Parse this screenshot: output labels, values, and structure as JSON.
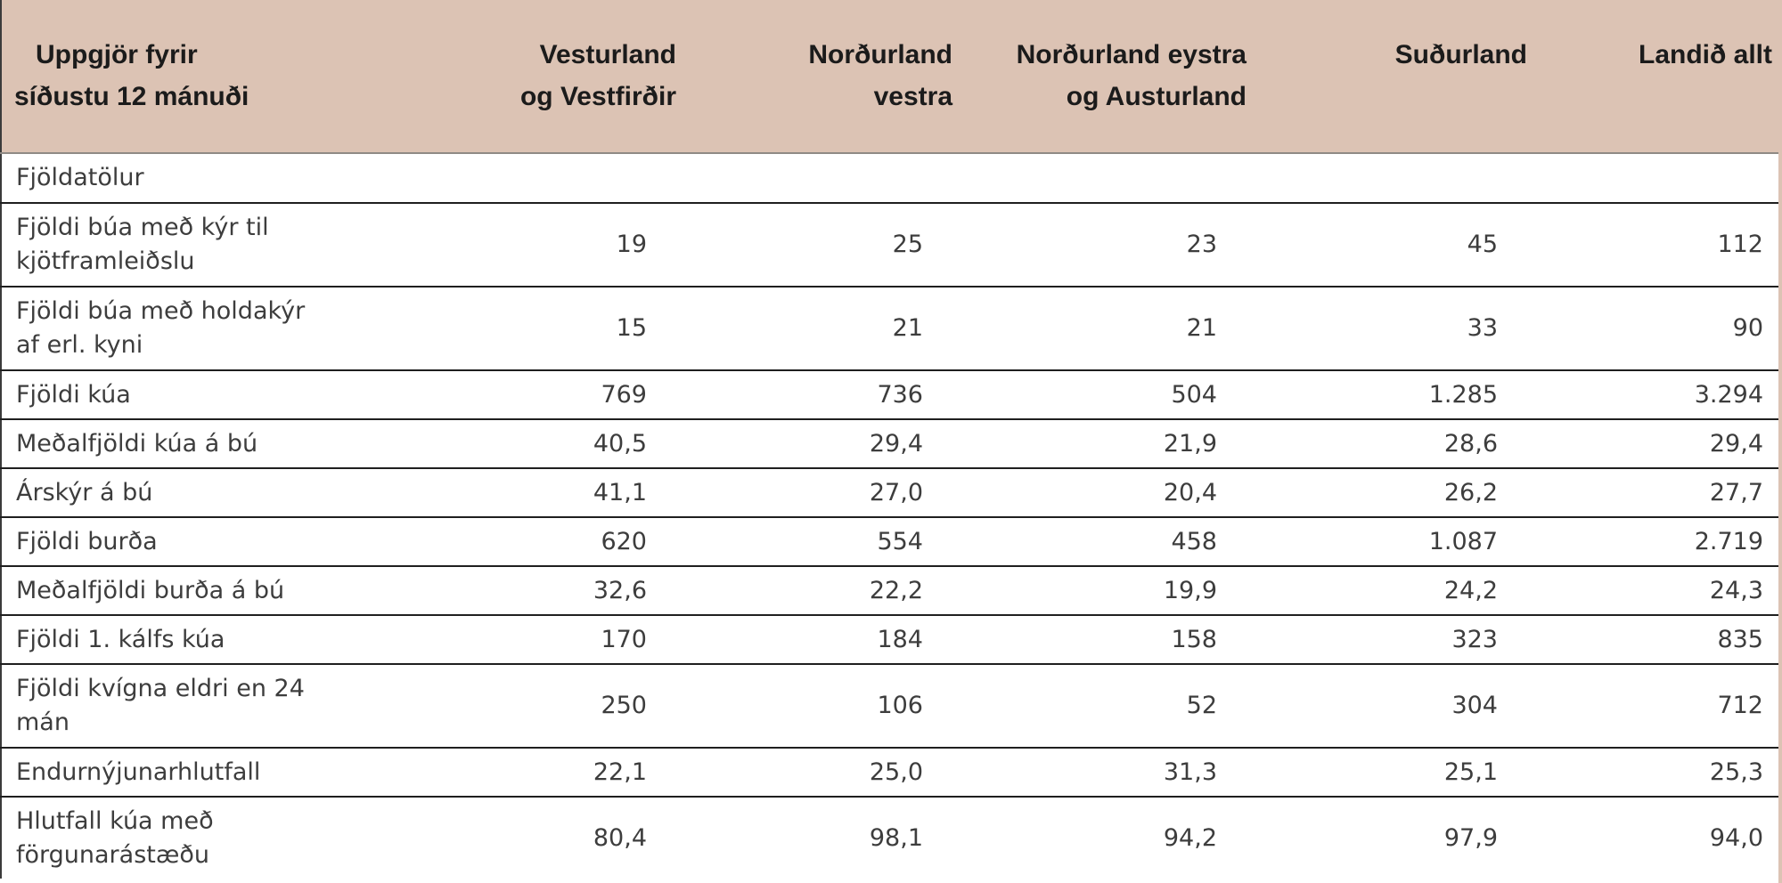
{
  "colors": {
    "header_bg": "#dcc3b4",
    "row_border": "#1f1f1f",
    "header_border": "#8f8a85",
    "body_text": "#3d3d3d",
    "header_text": "#1b1b1b"
  },
  "table": {
    "header": {
      "row_label": "Uppgjör fyrir\nsíðustu 12 mánuði",
      "columns": [
        "Vesturland\nog Vestfirðir",
        "Norðurland\nvestra",
        "Norðurland eystra\nog Austurland",
        "Suðurland",
        "Landið allt"
      ]
    },
    "rows": [
      {
        "label": "Fjöldatölur",
        "values": [],
        "section": true,
        "size": "section"
      },
      {
        "label": "Fjöldi búa með kýr til\nkjötframleiðslu",
        "values": [
          "19",
          "25",
          "23",
          "45",
          "112"
        ],
        "size": "double"
      },
      {
        "label": "Fjöldi búa með holdakýr\naf erl. kyni",
        "values": [
          "15",
          "21",
          "21",
          "33",
          "90"
        ],
        "size": "double"
      },
      {
        "label": "Fjöldi kúa",
        "values": [
          "769",
          "736",
          "504",
          "1.285",
          "3.294"
        ],
        "size": "single"
      },
      {
        "label": "Meðalfjöldi kúa á bú",
        "values": [
          "40,5",
          "29,4",
          "21,9",
          "28,6",
          "29,4"
        ],
        "size": "single"
      },
      {
        "label": "Árskýr á bú",
        "values": [
          "41,1",
          "27,0",
          "20,4",
          "26,2",
          "27,7"
        ],
        "size": "single"
      },
      {
        "label": "Fjöldi burða",
        "values": [
          "620",
          "554",
          "458",
          "1.087",
          "2.719"
        ],
        "size": "single"
      },
      {
        "label": "Meðalfjöldi burða á bú",
        "values": [
          "32,6",
          "22,2",
          "19,9",
          "24,2",
          "24,3"
        ],
        "size": "single"
      },
      {
        "label": "Fjöldi 1. kálfs kúa",
        "values": [
          "170",
          "184",
          "158",
          "323",
          "835"
        ],
        "size": "single"
      },
      {
        "label": "Fjöldi kvígna eldri en 24\nmán",
        "values": [
          "250",
          "106",
          "52",
          "304",
          "712"
        ],
        "size": "double"
      },
      {
        "label": "Endurnýjunarhlutfall",
        "values": [
          "22,1",
          "25,0",
          "31,3",
          "25,1",
          "25,3"
        ],
        "size": "single"
      },
      {
        "label": "Hlutfall kúa með\nförgunarástæðu",
        "values": [
          "80,4",
          "98,1",
          "94,2",
          "97,9",
          "94,0"
        ],
        "size": "double",
        "last": true
      }
    ]
  }
}
